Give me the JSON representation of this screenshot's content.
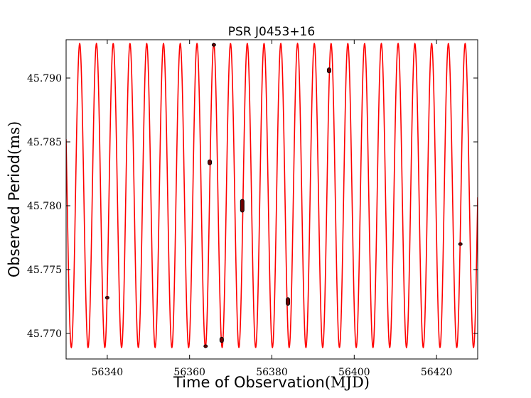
{
  "chart_data": {
    "type": "line",
    "title": "PSR J0453+16",
    "xlabel": "Time of Observation",
    "xlabel_unit": "(MJD)",
    "ylabel": "Observed Period",
    "ylabel_unit": "(ms)",
    "xlim": [
      56330,
      56430
    ],
    "ylim": [
      45.768,
      45.793
    ],
    "x_ticks": [
      56340,
      56360,
      56380,
      56400,
      56420
    ],
    "x_tick_labels": [
      "56340",
      "56360",
      "56380",
      "56400",
      "56420"
    ],
    "y_ticks": [
      45.77,
      45.775,
      45.78,
      45.785,
      45.79
    ],
    "y_tick_labels": [
      "45.770",
      "45.775",
      "45.780",
      "45.785",
      "45.790"
    ],
    "series": [
      {
        "name": "orbital model",
        "kind": "sinusoid",
        "color": "#ff0000",
        "mean": 45.7808,
        "amplitude": 0.0119,
        "period_days": 4.0719,
        "peak_mjd": 56333.3
      },
      {
        "name": "observations",
        "kind": "points",
        "color": "#000000",
        "points": [
          {
            "x": 56340.0,
            "y": 45.7728,
            "yerr": 0.0001
          },
          {
            "x": 56363.9,
            "y": 45.769,
            "yerr": 0.0001
          },
          {
            "x": 56364.9,
            "y": 45.7834,
            "yerr": 0.0002
          },
          {
            "x": 56365.9,
            "y": 45.7926,
            "yerr": 0.0001
          },
          {
            "x": 56367.8,
            "y": 45.7695,
            "yerr": 0.0002
          },
          {
            "x": 56372.8,
            "y": 45.78,
            "yerr": 0.0005
          },
          {
            "x": 56383.9,
            "y": 45.7725,
            "yerr": 0.0003
          },
          {
            "x": 56393.9,
            "y": 45.7906,
            "yerr": 0.0002
          },
          {
            "x": 56425.8,
            "y": 45.777,
            "yerr": 0.0001
          }
        ]
      }
    ]
  }
}
